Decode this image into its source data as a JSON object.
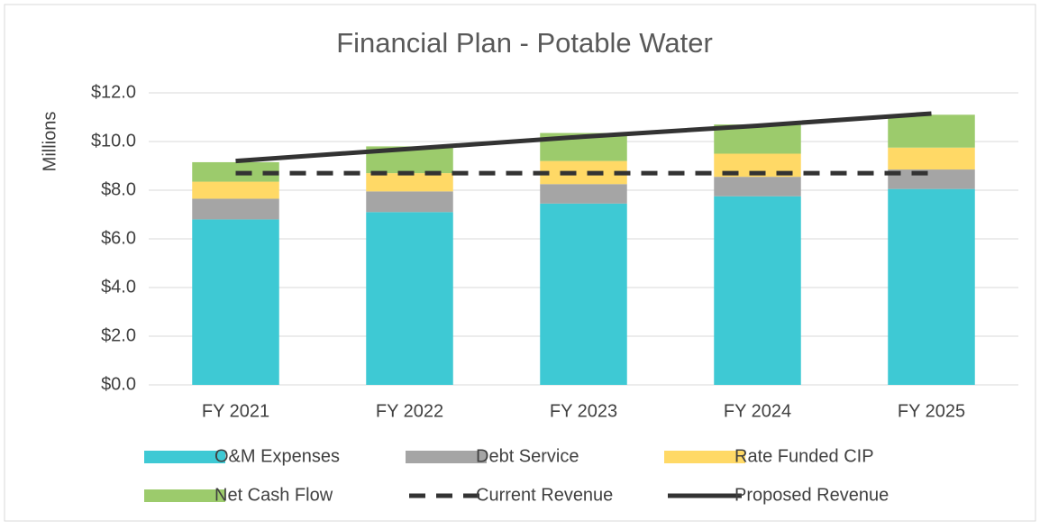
{
  "chart_data": {
    "type": "bar",
    "stacked": true,
    "title": "Financial Plan - Potable Water",
    "y_label": "Millions",
    "categories": [
      "FY 2021",
      "FY 2022",
      "FY 2023",
      "FY 2024",
      "FY 2025"
    ],
    "series": [
      {
        "name": "O&M Expenses",
        "type": "bar",
        "color": "#3ec9d4",
        "values": [
          6.8,
          7.1,
          7.45,
          7.75,
          8.05
        ]
      },
      {
        "name": "Debt Service",
        "type": "bar",
        "color": "#a5a5a5",
        "values": [
          0.85,
          0.85,
          0.8,
          0.8,
          0.8
        ]
      },
      {
        "name": "Rate Funded CIP",
        "type": "bar",
        "color": "#ffd966",
        "values": [
          0.7,
          0.75,
          0.95,
          0.95,
          0.9
        ]
      },
      {
        "name": "Net Cash Flow",
        "type": "bar",
        "color": "#9ccb6c",
        "values": [
          0.8,
          1.1,
          1.15,
          1.2,
          1.35
        ]
      },
      {
        "name": "Current Revenue",
        "type": "line",
        "style": "dashed",
        "color": "#333333",
        "values": [
          8.7,
          8.7,
          8.7,
          8.7,
          8.7
        ]
      },
      {
        "name": "Proposed Revenue",
        "type": "line",
        "style": "solid",
        "color": "#333333",
        "values": [
          9.2,
          9.7,
          10.2,
          10.65,
          11.15
        ]
      }
    ],
    "ylim": [
      0,
      12
    ],
    "yticks": [
      {
        "value": 0,
        "label": "$0.0"
      },
      {
        "value": 2,
        "label": "$2.0"
      },
      {
        "value": 4,
        "label": "$4.0"
      },
      {
        "value": 6,
        "label": "$6.0"
      },
      {
        "value": 8,
        "label": "$8.0"
      },
      {
        "value": 10,
        "label": "$10.0"
      },
      {
        "value": 12,
        "label": "$12.0"
      }
    ],
    "grid": true,
    "legend": "bottom"
  }
}
